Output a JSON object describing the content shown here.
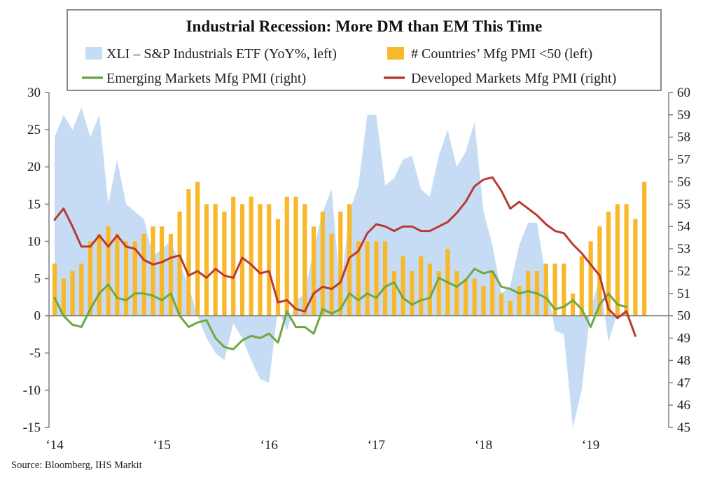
{
  "chart_data": {
    "type": "bar",
    "title": "Industrial Recession: More DM than EM This Time",
    "source": "Source: Bloomberg, IHS Markit",
    "y_left": {
      "min": -15,
      "max": 30,
      "ticks": [
        -15,
        -10,
        -5,
        0,
        5,
        10,
        15,
        20,
        25,
        30
      ]
    },
    "y_right": {
      "min": 45,
      "max": 60,
      "ticks": [
        45,
        46,
        47,
        48,
        49,
        50,
        51,
        52,
        53,
        54,
        55,
        56,
        57,
        58,
        59,
        60
      ]
    },
    "x_ticks": [
      {
        "label": "'14",
        "x": 0
      },
      {
        "label": "'15",
        "x": 12
      },
      {
        "label": "'16",
        "x": 24
      },
      {
        "label": "'17",
        "x": 36
      },
      {
        "label": "'18",
        "x": 48
      },
      {
        "label": "'19",
        "x": 60
      }
    ],
    "x_labels": [
      "‘14",
      "‘15",
      "‘16",
      "‘17",
      "‘18",
      "‘19"
    ],
    "series": [
      {
        "name": "XLI – S&P Industrials ETF (YoY%, left)",
        "type": "area",
        "axis": "left",
        "color": "#c6dcf4",
        "values": [
          24,
          27,
          25,
          28,
          24,
          27,
          15,
          21,
          15,
          14,
          13,
          8,
          9,
          10,
          7,
          4,
          0,
          -3,
          -5,
          -6,
          -1,
          -3,
          -6,
          -8.5,
          -9,
          1,
          -2,
          2,
          3,
          9,
          14,
          17,
          3,
          14,
          17.5,
          27,
          27,
          17.5,
          18.5,
          21,
          21.5,
          17,
          16,
          21.5,
          25,
          20,
          22,
          26,
          14,
          9.5,
          3,
          4,
          9.5,
          12.5,
          12.5,
          5,
          -2,
          -2.5,
          -15,
          -10,
          1,
          5,
          -3.5,
          0.5
        ]
      },
      {
        "name": "# Countries' Mfg PMI <50 (left)",
        "type": "bar",
        "axis": "left",
        "color": "#f8b829",
        "values": [
          7,
          5,
          6,
          7,
          10,
          11,
          12,
          11,
          10,
          10,
          11,
          12,
          12,
          11,
          14,
          17,
          18,
          15,
          15,
          14,
          16,
          15,
          16,
          15,
          15,
          13,
          16,
          16,
          15,
          12,
          14,
          11,
          14,
          15,
          10,
          10,
          10,
          10,
          6,
          8,
          6,
          8,
          7,
          6,
          9,
          6,
          5,
          5,
          4,
          6,
          3,
          2,
          4,
          6,
          6,
          7,
          7,
          7,
          3,
          8,
          10,
          12,
          14,
          15,
          15,
          13,
          18
        ]
      },
      {
        "name": "Emerging Markets Mfg PMI (right)",
        "type": "line",
        "axis": "right",
        "color": "#6ea844",
        "values": [
          50.8,
          50.0,
          49.6,
          49.5,
          50.3,
          51.0,
          51.4,
          50.8,
          50.7,
          51.0,
          51.0,
          50.9,
          50.7,
          51.0,
          50.0,
          49.5,
          49.7,
          49.8,
          49.0,
          48.6,
          48.5,
          48.9,
          49.1,
          49.0,
          49.2,
          48.8,
          50.2,
          49.5,
          49.5,
          49.2,
          50.3,
          50.1,
          50.3,
          51.0,
          50.7,
          51.0,
          50.8,
          51.3,
          51.5,
          50.8,
          50.5,
          50.7,
          50.8,
          51.7,
          51.5,
          51.3,
          51.6,
          52.1,
          51.9,
          52.0,
          51.3,
          51.2,
          51.0,
          51.1,
          51.0,
          50.8,
          50.3,
          50.4,
          50.7,
          50.3,
          49.5,
          50.5,
          51.0,
          50.5,
          50.4
        ]
      },
      {
        "name": "Developed Markets Mfg PMI (right)",
        "type": "line",
        "axis": "right",
        "color": "#b83a35",
        "values": [
          54.3,
          54.8,
          54.0,
          53.1,
          53.1,
          53.6,
          53.1,
          53.6,
          53.1,
          53.0,
          52.5,
          52.3,
          52.4,
          52.6,
          52.7,
          51.8,
          52.0,
          51.7,
          52.1,
          51.8,
          51.7,
          52.6,
          52.3,
          51.9,
          52.0,
          50.6,
          50.7,
          50.3,
          50.2,
          51.0,
          51.3,
          51.2,
          51.5,
          52.6,
          52.9,
          53.7,
          54.1,
          54.0,
          53.8,
          54.0,
          54.0,
          53.8,
          53.8,
          54.0,
          54.2,
          54.6,
          55.1,
          55.8,
          56.1,
          56.2,
          55.6,
          54.8,
          55.1,
          54.8,
          54.5,
          54.1,
          53.8,
          53.7,
          53.2,
          52.8,
          52.3,
          51.8,
          50.3,
          49.9,
          50.2,
          49.1
        ]
      }
    ],
    "legend": {
      "xli": "XLI – S&P Industrials ETF (YoY%, left)",
      "countries": "# Countries’ Mfg PMI <50 (left)",
      "em": "Emerging Markets Mfg PMI (right)",
      "dm": "Developed Markets Mfg PMI (right)"
    }
  }
}
